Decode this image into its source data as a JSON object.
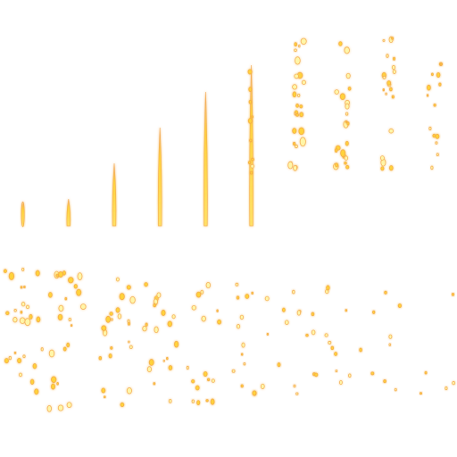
{
  "spritesheet": {
    "name": "",
    "colors": {
      "core": "#fff6a8",
      "mid": "#ffd23a",
      "edge": "#f3a64a",
      "glow": "#ffcf7a",
      "background": "#ffffff"
    },
    "rows": [
      {
        "name": "row-ember-rise",
        "frames": [
          {
            "frame": 1,
            "kind": "dot"
          },
          {
            "frame": 2,
            "kind": "streak",
            "length": 0.15
          },
          {
            "frame": 3,
            "kind": "streak",
            "length": 0.35
          },
          {
            "frame": 4,
            "kind": "streak",
            "length": 0.55
          },
          {
            "frame": 5,
            "kind": "streak",
            "length": 0.75
          },
          {
            "frame": 6,
            "kind": "streak-break",
            "length": 0.9
          },
          {
            "frame": 7,
            "kind": "sparks",
            "density": 0.9
          },
          {
            "frame": 8,
            "kind": "sparks",
            "density": 0.75
          },
          {
            "frame": 9,
            "kind": "sparks",
            "density": 0.6
          },
          {
            "frame": 10,
            "kind": "sparks",
            "density": 0.4
          }
        ]
      },
      {
        "name": "row-ember-fade",
        "frames": [
          {
            "frame": 1,
            "kind": "sparks",
            "density": 0.85
          },
          {
            "frame": 2,
            "kind": "sparks",
            "density": 0.75
          },
          {
            "frame": 3,
            "kind": "sparks",
            "density": 0.7
          },
          {
            "frame": 4,
            "kind": "sparks",
            "density": 0.6
          },
          {
            "frame": 5,
            "kind": "sparks",
            "density": 0.5
          },
          {
            "frame": 6,
            "kind": "sparks",
            "density": 0.45
          },
          {
            "frame": 7,
            "kind": "sparks",
            "density": 0.35
          },
          {
            "frame": 8,
            "kind": "sparks",
            "density": 0.25
          },
          {
            "frame": 9,
            "kind": "sparks",
            "density": 0.15
          },
          {
            "frame": 10,
            "kind": "sparks",
            "density": 0.05
          }
        ]
      }
    ]
  }
}
